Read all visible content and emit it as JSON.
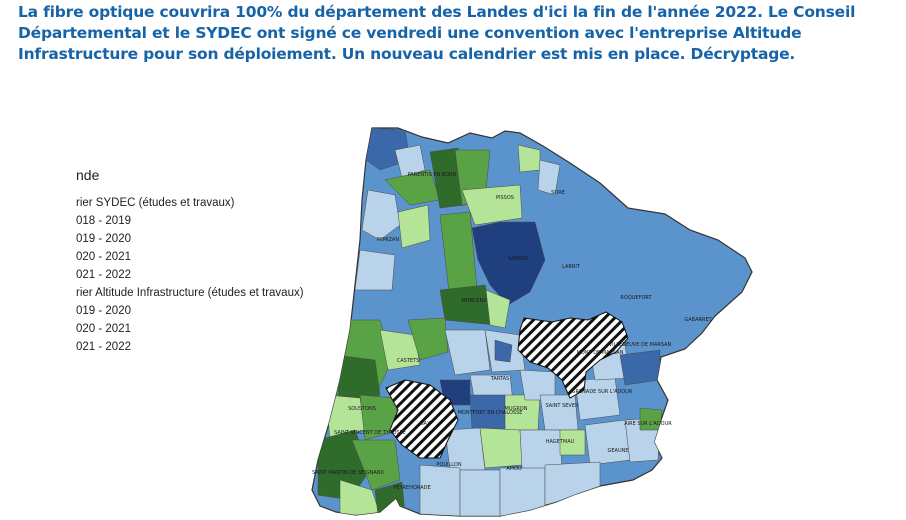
{
  "article": {
    "intro": "La fibre optique couvrira 100% du département des Landes d'ici la fin de l'année 2022. Le Conseil Départemental et le SYDEC ont signé ce vendredi une convention avec l'entreprise Altitude Infrastructure pour son déploiement. Un nouveau calendrier est mis en place. Décryptage."
  },
  "legend": {
    "title": "nde",
    "group_sydec": "rier SYDEC (études et travaux)",
    "sydec_items": [
      "018 - 2019",
      "019 - 2020",
      "020 - 2021",
      "021 - 2022"
    ],
    "group_altitude": "rier Altitude Infrastructure (études et travaux)",
    "altitude_items": [
      "019 - 2020",
      "020 - 2021",
      "021 - 2022"
    ]
  },
  "towns": {
    "parentis": "PARENTIS EN BORN",
    "sore": "SORE",
    "pissos": "PISSOS",
    "mimizan": "MIMIZAN",
    "sabres": "SABRES",
    "labrit": "LABRIT",
    "roquefort": "ROQUEFORT",
    "gabarret": "GABARRET",
    "morcenx": "MORCENX",
    "mont": "MONT DE MARSAN",
    "villeneuve": "VILLENEUVE DE MARSAN",
    "castets": "CASTETS",
    "tartas": "TARTAS",
    "grenade": "GRENADE SUR L'ADOUR",
    "soustons": "SOUSTONS",
    "dax": "DAX",
    "montfort": "MONTFORT EN CHALOSSE",
    "mugron": "MUGRON",
    "saintsever": "SAINT SEVER",
    "aire": "AIRE SUR L'ADOUR",
    "saintvincent": "SAINT VINCENT DE TYROSSE",
    "hagetmau": "HAGETMAU",
    "geaune": "GEAUNE",
    "pouillon": "POUILLON",
    "amou": "AMOU",
    "saintmartin": "SAINT MARTIN DE SEIGNANX",
    "peyrehorade": "PEYREHORADE"
  },
  "colors": {
    "sydec_2018_2019": "#1f3f7f",
    "sydec_2019_2020": "#3b68a8",
    "sydec_2020_2021": "#5b94cc",
    "sydec_2021_2022": "#b9d3ea",
    "altitude_2019_2020": "#2f6b2a",
    "altitude_2020_2021": "#5aa246",
    "altitude_2021_2022": "#b3e497",
    "intro_text": "#1763a8"
  }
}
